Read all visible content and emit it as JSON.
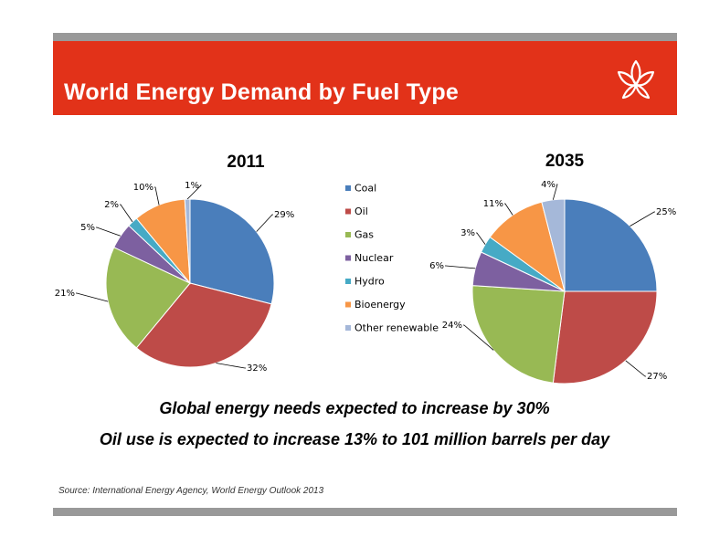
{
  "slide": {
    "title": "World Energy Demand by Fuel Type",
    "statement_1": "Global energy needs expected to increase by 30%",
    "statement_2": "Oil use is expected to increase 13% to 101 million barrels per day",
    "source": "Source: International Energy Agency, World Energy Outlook 2013"
  },
  "colors": {
    "banner": "#e23219",
    "bars": "#999999",
    "Coal": "#4a7ebb",
    "Oil": "#be4b48",
    "Gas": "#98b954",
    "Nuclear": "#7d60a0",
    "Hydro": "#46aac5",
    "Bioenergy": "#f79646",
    "Other renewable": "#a5b8d9"
  },
  "chart_data": [
    {
      "type": "pie",
      "title": "2011",
      "categories": [
        "Coal",
        "Oil",
        "Gas",
        "Nuclear",
        "Hydro",
        "Bioenergy",
        "Other renewable"
      ],
      "values": [
        29,
        32,
        21,
        5,
        2,
        10,
        1
      ],
      "labels": [
        "29%",
        "32%",
        "21%",
        "5%",
        "2%",
        "10%",
        "1%"
      ]
    },
    {
      "type": "pie",
      "title": "2035",
      "categories": [
        "Coal",
        "Oil",
        "Gas",
        "Nuclear",
        "Hydro",
        "Bioenergy",
        "Other renewable"
      ],
      "values": [
        25,
        27,
        24,
        6,
        3,
        11,
        4
      ],
      "labels": [
        "25%",
        "27%",
        "24%",
        "6%",
        "3%",
        "11%",
        "4%"
      ]
    }
  ],
  "legend": [
    "Coal",
    "Oil",
    "Gas",
    "Nuclear",
    "Hydro",
    "Bioenergy",
    "Other renewable"
  ]
}
